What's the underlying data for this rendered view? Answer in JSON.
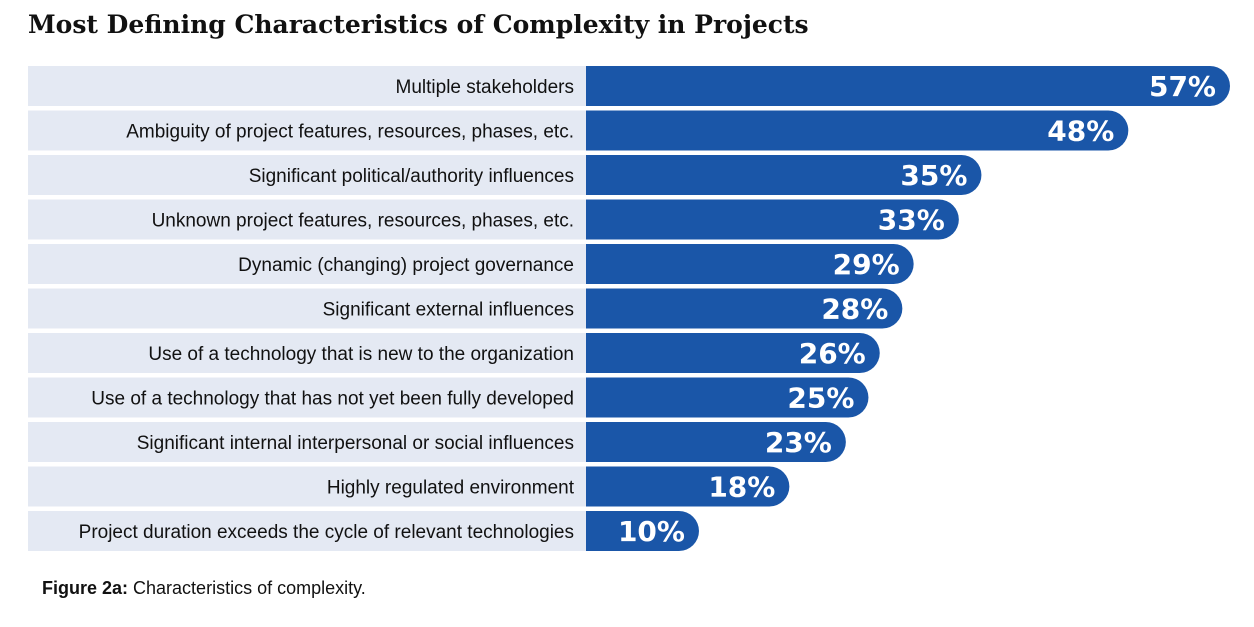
{
  "chart_data": {
    "type": "bar",
    "orientation": "horizontal",
    "title": "Most Defining Characteristics of Complexity in Projects",
    "categories": [
      "Multiple stakeholders",
      "Ambiguity of project features, resources, phases, etc.",
      "Significant political/authority influences",
      "Unknown project features, resources, phases, etc.",
      "Dynamic (changing) project governance",
      "Significant external influences",
      "Use of a technology that is new to the organization",
      "Use of a technology that has not yet been fully developed",
      "Significant internal interpersonal or social influences",
      "Highly regulated environment",
      "Project duration exceeds the cycle of relevant technologies"
    ],
    "values": [
      57,
      48,
      35,
      33,
      29,
      28,
      26,
      25,
      23,
      18,
      10
    ],
    "value_labels": [
      "57%",
      "48%",
      "35%",
      "33%",
      "29%",
      "28%",
      "26%",
      "25%",
      "23%",
      "18%",
      "10%"
    ],
    "unit": "%",
    "xlim": [
      0,
      57
    ],
    "grid": false,
    "legend": "none",
    "colors": {
      "bar": "#1a56a8",
      "label_background": "#e4e9f3",
      "value_text": "#ffffff",
      "category_text": "#111111"
    }
  },
  "caption": {
    "prefix": "Figure 2a:",
    "text": " Characteristics of complexity."
  }
}
